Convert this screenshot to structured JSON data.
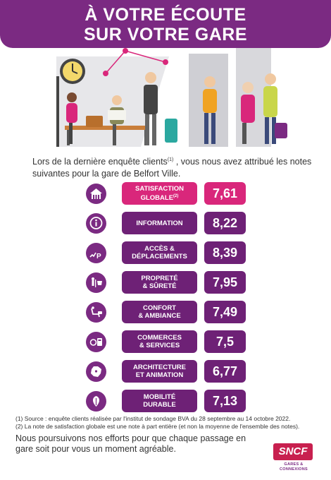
{
  "header": {
    "line1": "À VOTRE ÉCOUTE",
    "line2": "SUR VOTRE GARE"
  },
  "intro": {
    "part1": "Lors de la dernière enquête clients",
    "sup": "(1)",
    "part2": " , vous nous avez attribué les notes suivantes pour la gare de Belfort Ville."
  },
  "ratings": [
    {
      "icon": "station-icon",
      "label_l1": "SATISFACTION",
      "label_l2": "GLOBALE",
      "sup": "(2)",
      "score": "7,61"
    },
    {
      "icon": "info-icon",
      "label_l1": "INFORMATION",
      "label_l2": "",
      "sup": "",
      "score": "8,22"
    },
    {
      "icon": "access-parking-icon",
      "label_l1": "ACCÈS &",
      "label_l2": "DÉPLACEMENTS",
      "sup": "",
      "score": "8,39"
    },
    {
      "icon": "cleaning-security-icon",
      "label_l1": "PROPRETÉ",
      "label_l2": "& SÛRETÉ",
      "sup": "",
      "score": "7,95"
    },
    {
      "icon": "comfort-icon",
      "label_l1": "CONFORT",
      "label_l2": "& AMBIANCE",
      "sup": "",
      "score": "7,49"
    },
    {
      "icon": "shops-icon",
      "label_l1": "COMMERCES",
      "label_l2": "& SERVICES",
      "sup": "",
      "score": "7,5"
    },
    {
      "icon": "france-map-icon",
      "label_l1": "ARCHITECTURE",
      "label_l2": "ET ANIMATION",
      "sup": "",
      "score": "6,77"
    },
    {
      "icon": "mobility-icon",
      "label_l1": "MOBILITÉ",
      "label_l2": "DURABLE",
      "sup": "",
      "score": "7,13"
    }
  ],
  "footnotes": {
    "note1": "(1) Source : enquête clients réalisée par l'institut de sondage BVA du 28 septembre au 14 octobre 2022.",
    "note2": "(2) La note de satisfaction globale est une note à part entière (et non la moyenne de l'ensemble des notes)."
  },
  "closing": "Nous poursuivons nos efforts pour que chaque passage en gare soit pour vous un moment agréable.",
  "logo": {
    "brand": "SNCF",
    "sub1": "GARES &",
    "sub2": "CONNEXIONS"
  },
  "colors": {
    "purple": "#7b2a82",
    "magenta": "#d9277b"
  }
}
